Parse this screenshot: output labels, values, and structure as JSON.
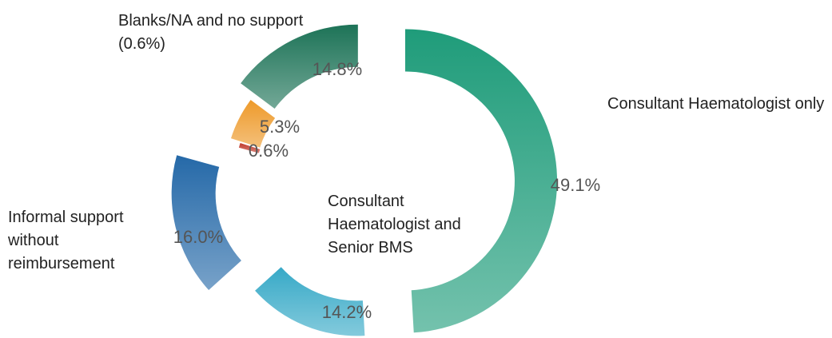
{
  "chart_data": {
    "type": "donut",
    "categories": [
      "Consultant Haematologist only",
      "Consultant Haematologist and Senior BMS",
      "Informal support without reimbursement",
      "Blanks/NA and no support",
      null,
      null
    ],
    "values": [
      49.1,
      14.2,
      16.0,
      0.6,
      5.3,
      14.8
    ],
    "value_labels": [
      "49.1%",
      "14.2%",
      "16.0%",
      "0.6%",
      "5.3%",
      "14.8%"
    ],
    "colors": [
      "#1f9c7a",
      "#37a9c7",
      "#2569a8",
      "#c0392b",
      "#ee9a2a",
      "#1d7357"
    ],
    "annotations": [
      "(0.6%)"
    ]
  }
}
